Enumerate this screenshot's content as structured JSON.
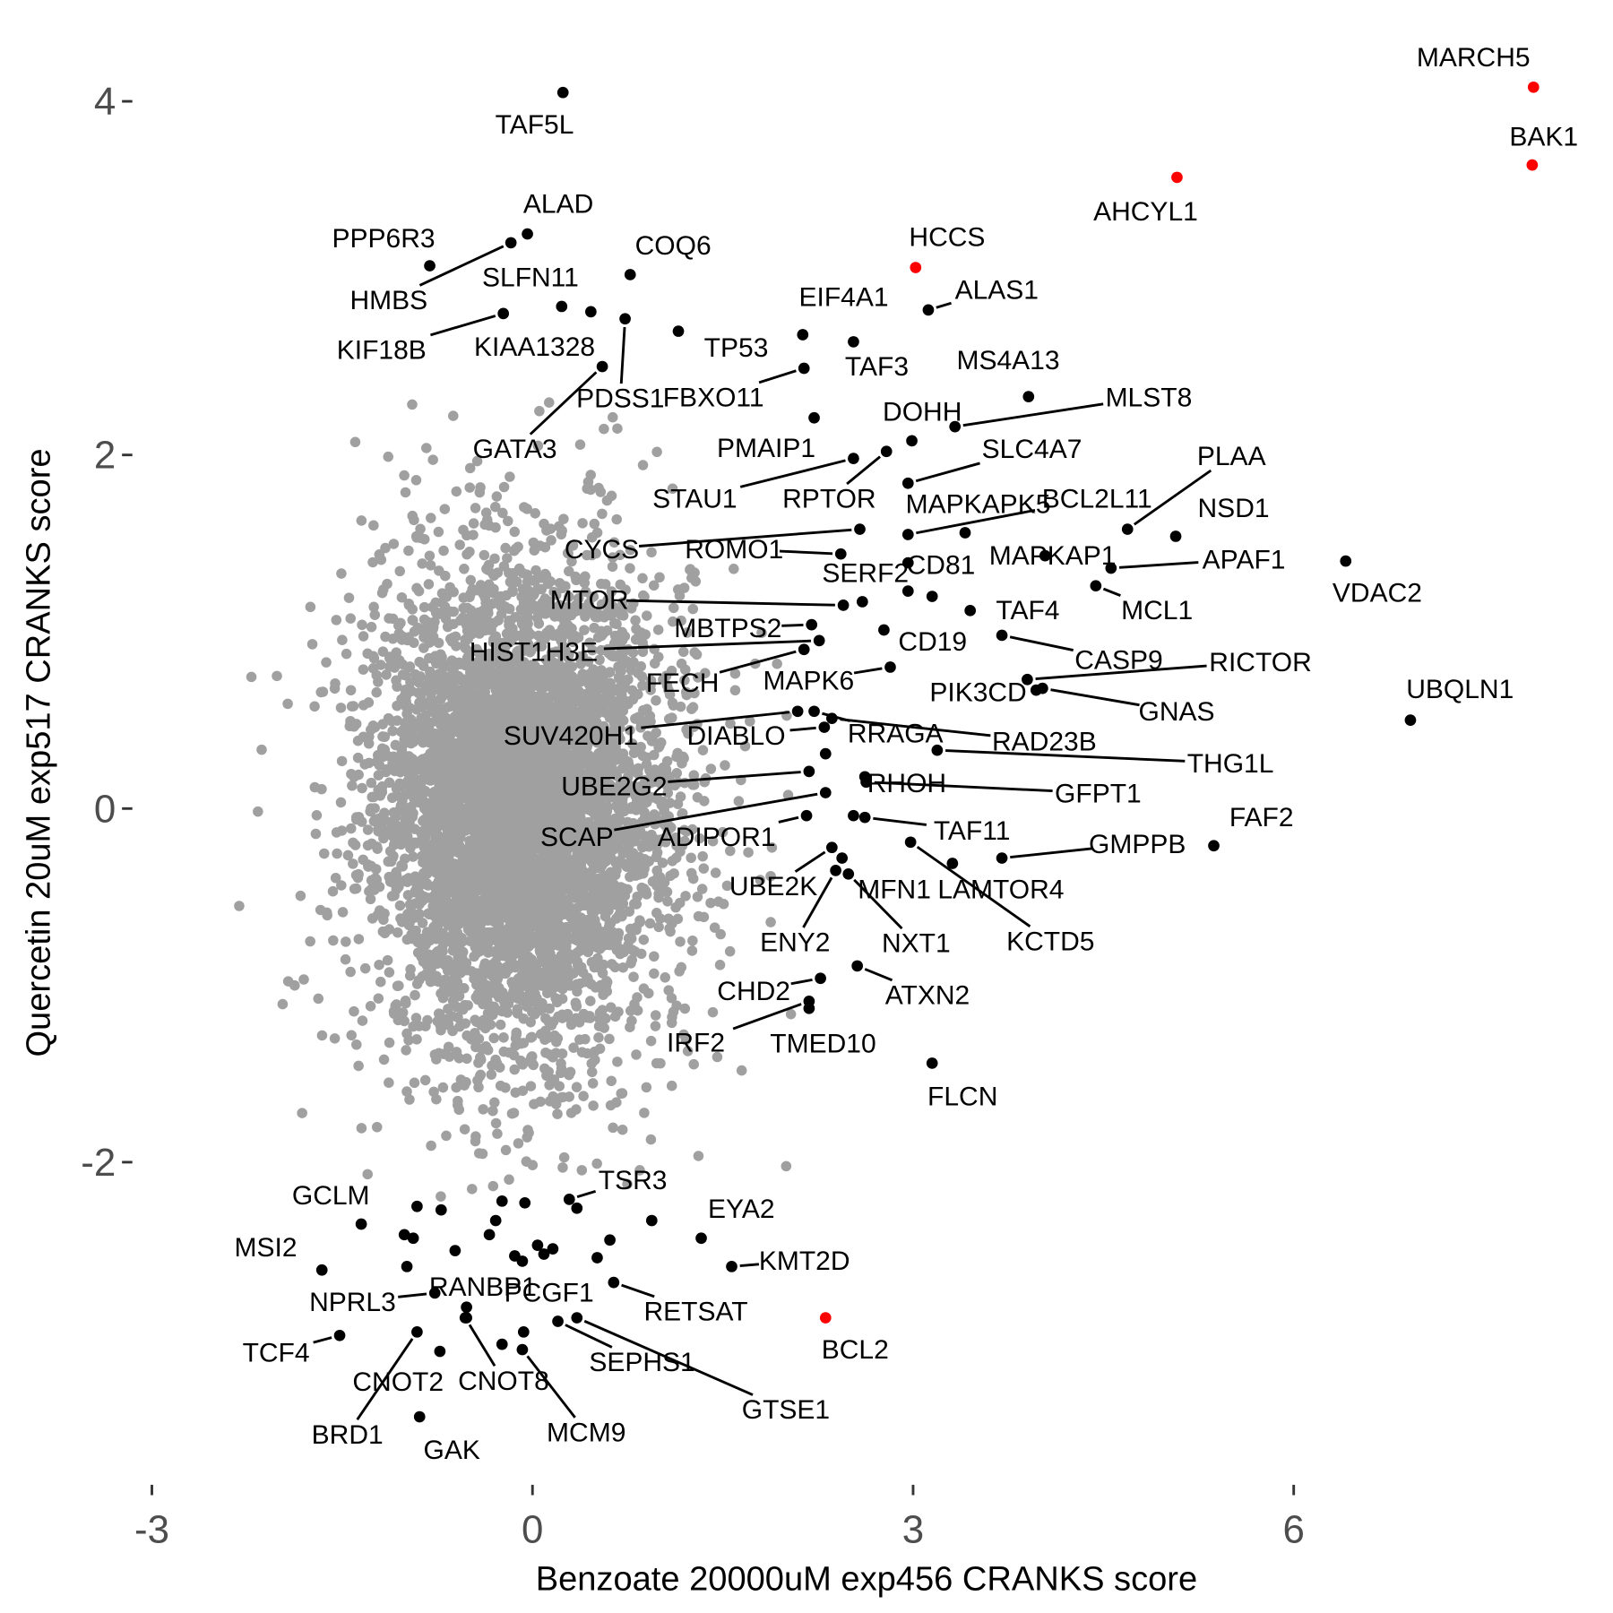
{
  "chart_data": {
    "type": "scatter",
    "title": "",
    "xlabel": "Benzoate 20000uM exp456 CRANKS score",
    "ylabel": "Quercetin 20uM exp517 CRANKS score",
    "xlim": [
      -3.2,
      8.2
    ],
    "ylim": [
      -3.7,
      4.3
    ],
    "x_ticks": [
      "-3",
      "0",
      "3",
      "6"
    ],
    "x_tick_values": [
      -3,
      0,
      3,
      6
    ],
    "y_ticks": [
      "-2",
      "0",
      "2",
      "4"
    ],
    "y_tick_values": [
      -2,
      0,
      2,
      4
    ],
    "grid": false,
    "colors": {
      "background_points": "#a0a0a0",
      "labeled": "#000000",
      "highlight": "#ff0000"
    },
    "background_points": {
      "x_center": -0.1,
      "y_center": 0.0,
      "x_sd": 0.55,
      "y_sd": 0.65
    },
    "points": [
      {
        "name": "MARCH5",
        "x": 7.89,
        "y": 4.08,
        "highlight": true
      },
      {
        "name": "BAK1",
        "x": 7.88,
        "y": 3.64,
        "highlight": true
      },
      {
        "name": "AHCYL1",
        "x": 5.08,
        "y": 3.57,
        "highlight": true
      },
      {
        "name": "HCCS",
        "x": 3.02,
        "y": 3.06,
        "highlight": true
      },
      {
        "name": "BCL2",
        "x": 2.31,
        "y": -2.88,
        "highlight": true
      },
      {
        "name": "TAF5L",
        "x": 0.24,
        "y": 4.05
      },
      {
        "name": "ALAD",
        "x": -0.04,
        "y": 3.25
      },
      {
        "name": "PPP6R3",
        "x": -0.81,
        "y": 3.07
      },
      {
        "name": "HMBS",
        "x": -0.17,
        "y": 3.2
      },
      {
        "name": "SLFN11",
        "x": 0.23,
        "y": 2.84
      },
      {
        "name": "COQ6",
        "x": 0.77,
        "y": 3.02
      },
      {
        "name": "KIF18B",
        "x": -0.23,
        "y": 2.8
      },
      {
        "name": "KIAA1328",
        "x": 0.46,
        "y": 2.81
      },
      {
        "name": "PDSS1",
        "x": 0.73,
        "y": 2.77
      },
      {
        "name": "GATA3",
        "x": 0.55,
        "y": 2.5
      },
      {
        "name": "FBXO11",
        "x": 2.14,
        "y": 2.49
      },
      {
        "name": "TP53",
        "x": 1.15,
        "y": 2.7
      },
      {
        "name": "EIF4A1",
        "x": 2.13,
        "y": 2.68
      },
      {
        "name": "TAF3",
        "x": 2.53,
        "y": 2.64
      },
      {
        "name": "ALAS1",
        "x": 3.12,
        "y": 2.82
      },
      {
        "name": "MS4A13",
        "x": 3.91,
        "y": 2.33
      },
      {
        "name": "MLST8",
        "x": 3.33,
        "y": 2.16
      },
      {
        "name": "DOHH",
        "x": 2.99,
        "y": 2.08
      },
      {
        "name": "PMAIP1",
        "x": 2.22,
        "y": 2.21
      },
      {
        "name": "SLC4A7",
        "x": 2.96,
        "y": 1.84
      },
      {
        "name": "STAU1",
        "x": 2.53,
        "y": 1.98
      },
      {
        "name": "RPTOR",
        "x": 2.79,
        "y": 2.02
      },
      {
        "name": "PLAA",
        "x": 4.69,
        "y": 1.58
      },
      {
        "name": "NSD1",
        "x": 5.07,
        "y": 1.54
      },
      {
        "name": "MAPKAPK5",
        "x": 3.41,
        "y": 1.56
      },
      {
        "name": "BCL2L11",
        "x": 2.96,
        "y": 1.55
      },
      {
        "name": "VDAC2",
        "x": 6.41,
        "y": 1.4
      },
      {
        "name": "APAF1",
        "x": 4.56,
        "y": 1.36
      },
      {
        "name": "MAPKAP1",
        "x": 4.04,
        "y": 1.43
      },
      {
        "name": "MCL1",
        "x": 4.44,
        "y": 1.26
      },
      {
        "name": "CYCS",
        "x": 2.58,
        "y": 1.58
      },
      {
        "name": "ROMO1",
        "x": 2.43,
        "y": 1.44
      },
      {
        "name": "CD81",
        "x": 2.96,
        "y": 1.39
      },
      {
        "name": "SERF2",
        "x": 2.96,
        "y": 1.23
      },
      {
        "name": "",
        "x": 3.15,
        "y": 1.2
      },
      {
        "name": "TAF4",
        "x": 3.45,
        "y": 1.12
      },
      {
        "name": "MTOR",
        "x": 2.45,
        "y": 1.15
      },
      {
        "name": "",
        "x": 2.6,
        "y": 1.17
      },
      {
        "name": "MBTPS2",
        "x": 2.2,
        "y": 1.04
      },
      {
        "name": "HIST1H3E",
        "x": 2.26,
        "y": 0.95
      },
      {
        "name": "CD19",
        "x": 2.77,
        "y": 1.01
      },
      {
        "name": "CASP9",
        "x": 3.7,
        "y": 0.98
      },
      {
        "name": "RICTOR",
        "x": 3.9,
        "y": 0.73
      },
      {
        "name": "FECH",
        "x": 2.14,
        "y": 0.9
      },
      {
        "name": "MAPK6",
        "x": 2.82,
        "y": 0.8
      },
      {
        "name": "PIK3CD",
        "x": 3.97,
        "y": 0.67
      },
      {
        "name": "GNAS",
        "x": 4.02,
        "y": 0.68
      },
      {
        "name": "UBQLN1",
        "x": 6.92,
        "y": 0.5
      },
      {
        "name": "SUV420H1",
        "x": 2.09,
        "y": 0.55
      },
      {
        "name": "RRAGA",
        "x": 2.22,
        "y": 0.55
      },
      {
        "name": "RAD23B",
        "x": 2.36,
        "y": 0.51
      },
      {
        "name": "DIABLO",
        "x": 2.3,
        "y": 0.46
      },
      {
        "name": "THG1L",
        "x": 3.19,
        "y": 0.33
      },
      {
        "name": "",
        "x": 2.31,
        "y": 0.31
      },
      {
        "name": "UBE2G2",
        "x": 2.18,
        "y": 0.21
      },
      {
        "name": "RHOH",
        "x": 2.62,
        "y": 0.18
      },
      {
        "name": "GFPT1",
        "x": 2.63,
        "y": 0.15
      },
      {
        "name": "SCAP",
        "x": 2.31,
        "y": 0.09
      },
      {
        "name": "ADIPOR1",
        "x": 2.16,
        "y": -0.04
      },
      {
        "name": "TAF11",
        "x": 2.62,
        "y": -0.05
      },
      {
        "name": "",
        "x": 2.53,
        "y": -0.04
      },
      {
        "name": "FAF2",
        "x": 5.37,
        "y": -0.21
      },
      {
        "name": "GMPPB",
        "x": 3.7,
        "y": -0.28
      },
      {
        "name": "KCTD5",
        "x": 2.98,
        "y": -0.19
      },
      {
        "name": "LAMTOR4",
        "x": 3.31,
        "y": -0.31
      },
      {
        "name": "UBE2K",
        "x": 2.36,
        "y": -0.22
      },
      {
        "name": "MFN1",
        "x": 2.44,
        "y": -0.28
      },
      {
        "name": "ENY2",
        "x": 2.39,
        "y": -0.35
      },
      {
        "name": "NXT1",
        "x": 2.49,
        "y": -0.37
      },
      {
        "name": "ATXN2",
        "x": 2.56,
        "y": -0.89
      },
      {
        "name": "CHD2",
        "x": 2.27,
        "y": -0.96
      },
      {
        "name": "IRF2",
        "x": 2.18,
        "y": -1.09
      },
      {
        "name": "TMED10",
        "x": 2.18,
        "y": -1.13
      },
      {
        "name": "FLCN",
        "x": 3.15,
        "y": -1.44
      },
      {
        "name": "TSR3",
        "x": 0.29,
        "y": -2.21
      },
      {
        "name": "EYA2",
        "x": 1.33,
        "y": -2.43
      },
      {
        "name": "KMT2D",
        "x": 1.57,
        "y": -2.59
      },
      {
        "name": "RETSAT",
        "x": 0.64,
        "y": -2.68
      },
      {
        "name": "GCLM",
        "x": -1.35,
        "y": -2.35
      },
      {
        "name": "MSI2",
        "x": -1.66,
        "y": -2.61
      },
      {
        "name": "NPRL3",
        "x": -0.77,
        "y": -2.74
      },
      {
        "name": "RANBP1",
        "x": -0.52,
        "y": -2.82
      },
      {
        "name": "PCGF1",
        "x": 0.16,
        "y": -2.49
      },
      {
        "name": "TCF4",
        "x": -1.52,
        "y": -2.98
      },
      {
        "name": "SEPHS1",
        "x": 0.2,
        "y": -2.9
      },
      {
        "name": "GTSE1",
        "x": 0.35,
        "y": -2.88
      },
      {
        "name": "CNOT2",
        "x": -0.73,
        "y": -3.07
      },
      {
        "name": "CNOT8",
        "x": -0.53,
        "y": -2.88
      },
      {
        "name": "BRD1",
        "x": -0.91,
        "y": -2.96
      },
      {
        "name": "GAK",
        "x": -0.89,
        "y": -3.44
      },
      {
        "name": "MCM9",
        "x": -0.08,
        "y": -3.06
      },
      {
        "name": "",
        "x": -0.91,
        "y": -2.25
      },
      {
        "name": "",
        "x": -0.72,
        "y": -2.27
      },
      {
        "name": "",
        "x": -0.24,
        "y": -2.22
      },
      {
        "name": "",
        "x": -0.06,
        "y": -2.23
      },
      {
        "name": "",
        "x": 0.35,
        "y": -2.26
      },
      {
        "name": "",
        "x": 0.94,
        "y": -2.33
      },
      {
        "name": "",
        "x": -1.01,
        "y": -2.41
      },
      {
        "name": "",
        "x": -0.94,
        "y": -2.43
      },
      {
        "name": "",
        "x": -0.34,
        "y": -2.41
      },
      {
        "name": "",
        "x": -0.29,
        "y": -2.33
      },
      {
        "name": "",
        "x": 0.04,
        "y": -2.47
      },
      {
        "name": "",
        "x": -0.14,
        "y": -2.53
      },
      {
        "name": "",
        "x": -0.08,
        "y": -2.56
      },
      {
        "name": "",
        "x": -0.61,
        "y": -2.5
      },
      {
        "name": "",
        "x": 0.51,
        "y": -2.54
      },
      {
        "name": "",
        "x": 0.61,
        "y": -2.44
      },
      {
        "name": "",
        "x": -0.99,
        "y": -2.59
      },
      {
        "name": "",
        "x": -0.52,
        "y": -2.88
      },
      {
        "name": "",
        "x": -0.24,
        "y": -3.03
      },
      {
        "name": "",
        "x": -0.07,
        "y": -2.96
      },
      {
        "name": "",
        "x": 0.09,
        "y": -2.52
      }
    ]
  }
}
